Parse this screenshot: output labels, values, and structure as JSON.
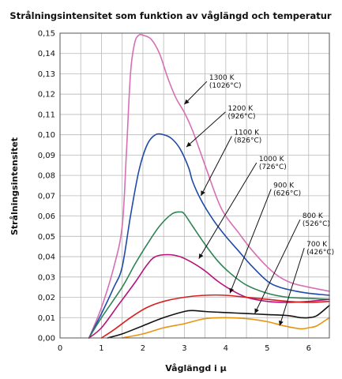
{
  "chart_data": {
    "type": "line",
    "title": "Strålningsintensitet som funktion av våglängd och temperatur",
    "xlabel": "Våglängd i µ",
    "ylabel": "Strålningsintensitet",
    "xlim": [
      0,
      6.5
    ],
    "ylim": [
      0,
      0.15
    ],
    "x_ticks": [
      {
        "value": 0,
        "label": "0"
      },
      {
        "value": 1,
        "label": "1"
      },
      {
        "value": 2,
        "label": "2"
      },
      {
        "value": 3,
        "label": "3"
      },
      {
        "value": 4,
        "label": "4"
      },
      {
        "value": 5,
        "label": "5"
      },
      {
        "value": 6,
        "label": "6"
      }
    ],
    "y_ticks": [
      {
        "value": 0,
        "label": "0,00"
      },
      {
        "value": 0.01,
        "label": "0,01"
      },
      {
        "value": 0.02,
        "label": "0,02"
      },
      {
        "value": 0.03,
        "label": "0,03"
      },
      {
        "value": 0.04,
        "label": "0,04"
      },
      {
        "value": 0.05,
        "label": "0,05"
      },
      {
        "value": 0.06,
        "label": "0,06"
      },
      {
        "value": 0.07,
        "label": "0,07"
      },
      {
        "value": 0.08,
        "label": "0,08"
      },
      {
        "value": 0.09,
        "label": "0,09"
      },
      {
        "value": 0.1,
        "label": "0,10"
      },
      {
        "value": 0.11,
        "label": "0,11"
      },
      {
        "value": 0.12,
        "label": "0,12"
      },
      {
        "value": 0.13,
        "label": "0,13"
      },
      {
        "value": 0.14,
        "label": "0,14"
      },
      {
        "value": 0.15,
        "label": "0,15"
      }
    ],
    "grid": true,
    "series": [
      {
        "label_line1": "1300 K",
        "label_line2": "(1026°C)",
        "color": "#d66fb4",
        "label_at": [
          3.6,
          0.127
        ],
        "arrow_to": [
          3.0,
          0.115
        ],
        "points": [
          [
            0.7,
            0
          ],
          [
            1.0,
            0.015
          ],
          [
            1.3,
            0.035
          ],
          [
            1.5,
            0.055
          ],
          [
            1.6,
            0.09
          ],
          [
            1.7,
            0.13
          ],
          [
            1.8,
            0.145
          ],
          [
            1.9,
            0.149
          ],
          [
            2.0,
            0.149
          ],
          [
            2.2,
            0.147
          ],
          [
            2.4,
            0.14
          ],
          [
            2.6,
            0.128
          ],
          [
            2.8,
            0.118
          ],
          [
            3.0,
            0.111
          ],
          [
            3.2,
            0.102
          ],
          [
            3.5,
            0.085
          ],
          [
            3.8,
            0.068
          ],
          [
            4.0,
            0.06
          ],
          [
            4.3,
            0.052
          ],
          [
            4.6,
            0.044
          ],
          [
            5.0,
            0.035
          ],
          [
            5.3,
            0.03
          ],
          [
            5.6,
            0.027
          ],
          [
            6.0,
            0.025
          ],
          [
            6.5,
            0.023
          ]
        ]
      },
      {
        "label_line1": "1200 K",
        "label_line2": "(926°C)",
        "color": "#1f4aa8",
        "label_at": [
          4.05,
          0.112
        ],
        "arrow_to": [
          3.05,
          0.094
        ],
        "points": [
          [
            0.7,
            0
          ],
          [
            1.0,
            0.012
          ],
          [
            1.3,
            0.025
          ],
          [
            1.5,
            0.035
          ],
          [
            1.7,
            0.06
          ],
          [
            1.9,
            0.082
          ],
          [
            2.1,
            0.095
          ],
          [
            2.3,
            0.1
          ],
          [
            2.5,
            0.1
          ],
          [
            2.7,
            0.098
          ],
          [
            2.9,
            0.093
          ],
          [
            3.1,
            0.084
          ],
          [
            3.2,
            0.077
          ],
          [
            3.4,
            0.068
          ],
          [
            3.7,
            0.058
          ],
          [
            4.0,
            0.05
          ],
          [
            4.3,
            0.043
          ],
          [
            4.6,
            0.036
          ],
          [
            5.0,
            0.028
          ],
          [
            5.3,
            0.025
          ],
          [
            5.7,
            0.023
          ],
          [
            6.0,
            0.022
          ],
          [
            6.5,
            0.021
          ]
        ]
      },
      {
        "label_line1": "1100 K",
        "label_line2": "(826°C)",
        "color": "#2e8456",
        "label_at": [
          4.2,
          0.1
        ],
        "arrow_to": [
          3.4,
          0.07
        ],
        "points": [
          [
            0.7,
            0
          ],
          [
            1.0,
            0.01
          ],
          [
            1.5,
            0.025
          ],
          [
            1.8,
            0.036
          ],
          [
            2.1,
            0.046
          ],
          [
            2.4,
            0.055
          ],
          [
            2.7,
            0.061
          ],
          [
            2.9,
            0.062
          ],
          [
            3.0,
            0.061
          ],
          [
            3.2,
            0.055
          ],
          [
            3.5,
            0.046
          ],
          [
            3.8,
            0.038
          ],
          [
            4.1,
            0.032
          ],
          [
            4.5,
            0.026
          ],
          [
            5.0,
            0.022
          ],
          [
            5.5,
            0.02
          ],
          [
            6.0,
            0.0195
          ],
          [
            6.5,
            0.019
          ]
        ]
      },
      {
        "label_line1": "1000 K",
        "label_line2": "(726°C)",
        "color": "#b5157a",
        "label_at": [
          4.8,
          0.087
        ],
        "arrow_to": [
          3.35,
          0.039
        ],
        "points": [
          [
            0.7,
            0
          ],
          [
            1.0,
            0.005
          ],
          [
            1.4,
            0.016
          ],
          [
            1.8,
            0.027
          ],
          [
            2.1,
            0.036
          ],
          [
            2.3,
            0.04
          ],
          [
            2.6,
            0.041
          ],
          [
            2.9,
            0.04
          ],
          [
            3.2,
            0.037
          ],
          [
            3.5,
            0.033
          ],
          [
            3.8,
            0.028
          ],
          [
            4.1,
            0.024
          ],
          [
            4.5,
            0.02
          ],
          [
            5.0,
            0.018
          ],
          [
            5.5,
            0.0175
          ],
          [
            6.0,
            0.018
          ],
          [
            6.5,
            0.019
          ]
        ]
      },
      {
        "label_line1": "900 K",
        "label_line2": "(626°C)",
        "color": "#d62020",
        "label_at": [
          5.15,
          0.074
        ],
        "arrow_to": [
          4.1,
          0.022
        ],
        "points": [
          [
            1.0,
            0
          ],
          [
            1.3,
            0.004
          ],
          [
            1.7,
            0.01
          ],
          [
            2.1,
            0.015
          ],
          [
            2.5,
            0.018
          ],
          [
            3.0,
            0.02
          ],
          [
            3.5,
            0.021
          ],
          [
            4.0,
            0.021
          ],
          [
            4.5,
            0.02
          ],
          [
            5.0,
            0.019
          ],
          [
            5.5,
            0.018
          ],
          [
            6.0,
            0.0175
          ],
          [
            6.5,
            0.018
          ]
        ]
      },
      {
        "label_line1": "800 K",
        "label_line2": "(526°C)",
        "color": "#111111",
        "label_at": [
          5.85,
          0.059
        ],
        "arrow_to": [
          4.7,
          0.012
        ],
        "points": [
          [
            1.15,
            0
          ],
          [
            1.5,
            0.002
          ],
          [
            2.0,
            0.006
          ],
          [
            2.5,
            0.01
          ],
          [
            3.0,
            0.013
          ],
          [
            3.2,
            0.0135
          ],
          [
            3.5,
            0.013
          ],
          [
            4.0,
            0.0125
          ],
          [
            4.5,
            0.012
          ],
          [
            5.0,
            0.0115
          ],
          [
            5.5,
            0.011
          ],
          [
            5.8,
            0.01
          ],
          [
            6.0,
            0.01
          ],
          [
            6.2,
            0.011
          ],
          [
            6.5,
            0.016
          ]
        ]
      },
      {
        "label_line1": "700 K",
        "label_line2": "(426°C)",
        "color": "#e8940f",
        "label_at": [
          5.95,
          0.045
        ],
        "arrow_to": [
          5.3,
          0.006
        ],
        "points": [
          [
            1.5,
            0
          ],
          [
            2.0,
            0.002
          ],
          [
            2.5,
            0.005
          ],
          [
            3.0,
            0.007
          ],
          [
            3.5,
            0.0095
          ],
          [
            4.0,
            0.01
          ],
          [
            4.5,
            0.0095
          ],
          [
            5.0,
            0.008
          ],
          [
            5.4,
            0.006
          ],
          [
            5.8,
            0.0045
          ],
          [
            6.0,
            0.005
          ],
          [
            6.2,
            0.006
          ],
          [
            6.5,
            0.01
          ]
        ]
      }
    ]
  }
}
